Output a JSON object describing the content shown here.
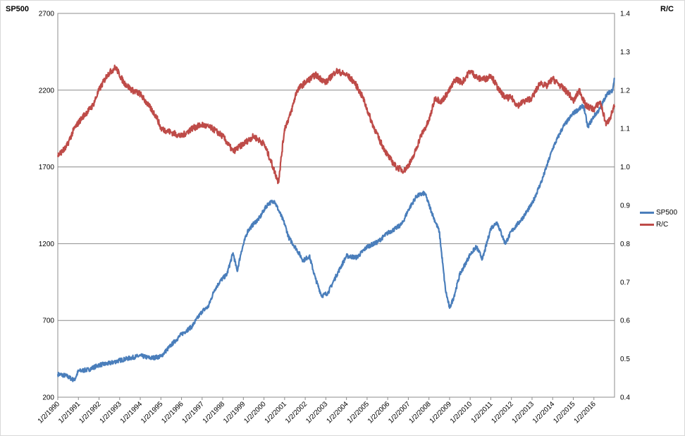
{
  "chart_data": {
    "type": "line",
    "left_axis": {
      "label": "SP500",
      "ylim": [
        200,
        2700
      ],
      "ticks": [
        200,
        700,
        1200,
        1700,
        2200,
        2700
      ]
    },
    "right_axis": {
      "label": "R/C",
      "ylim": [
        0.4,
        1.4
      ],
      "ticks": [
        "0.4",
        "0.5",
        "0.6",
        "0.7",
        "0.8",
        "0.9",
        "1.0",
        "1.1",
        "1.2",
        "1.3",
        "1.4"
      ]
    },
    "x_labels": [
      "1/2/1990",
      "1/2/1991",
      "1/2/1992",
      "1/2/1993",
      "1/2/1994",
      "1/2/1995",
      "1/2/1996",
      "1/2/1997",
      "1/2/1998",
      "1/2/1999",
      "1/2/2000",
      "1/2/2001",
      "1/2/2002",
      "1/2/2003",
      "1/2/2004",
      "1/2/2005",
      "1/2/2006",
      "1/2/2007",
      "1/2/2008",
      "1/2/2009",
      "1/2/2010",
      "1/2/2011",
      "1/2/2012",
      "1/2/2013",
      "1/2/2014",
      "1/2/2015",
      "1/2/2016"
    ],
    "xlim": [
      1990.0,
      2017.0
    ],
    "grid": "horizontal",
    "legend_position": "right",
    "series": [
      {
        "name": "SP500",
        "axis": "left",
        "color": "#4a7ebb",
        "x": [
          1990.0,
          1990.4,
          1990.8,
          1991.0,
          1991.5,
          1992.0,
          1992.5,
          1993.0,
          1993.5,
          1994.0,
          1994.5,
          1995.0,
          1995.5,
          1996.0,
          1996.5,
          1997.0,
          1997.3,
          1997.6,
          1997.9,
          1998.2,
          1998.5,
          1998.7,
          1998.9,
          1999.2,
          1999.5,
          1999.8,
          2000.0,
          2000.2,
          2000.5,
          2000.7,
          2001.0,
          2001.2,
          2001.6,
          2001.9,
          2002.2,
          2002.5,
          2002.8,
          2003.1,
          2003.5,
          2004.0,
          2004.5,
          2005.0,
          2005.5,
          2006.0,
          2006.4,
          2006.7,
          2007.0,
          2007.4,
          2007.8,
          2008.2,
          2008.5,
          2008.8,
          2009.0,
          2009.2,
          2009.5,
          2010.0,
          2010.3,
          2010.6,
          2011.0,
          2011.3,
          2011.7,
          2012.0,
          2012.5,
          2013.0,
          2013.5,
          2014.0,
          2014.5,
          2015.0,
          2015.5,
          2015.7,
          2016.0,
          2016.3,
          2016.6,
          2016.9,
          2017.0
        ],
        "values": [
          350,
          340,
          310,
          370,
          380,
          410,
          420,
          440,
          455,
          470,
          455,
          465,
          540,
          610,
          660,
          760,
          790,
          900,
          960,
          1000,
          1140,
          1020,
          1150,
          1280,
          1330,
          1370,
          1420,
          1460,
          1480,
          1420,
          1330,
          1240,
          1160,
          1090,
          1120,
          970,
          860,
          880,
          990,
          1120,
          1110,
          1180,
          1210,
          1270,
          1300,
          1330,
          1420,
          1510,
          1530,
          1380,
          1280,
          900,
          780,
          850,
          1000,
          1130,
          1180,
          1100,
          1300,
          1340,
          1200,
          1280,
          1360,
          1460,
          1620,
          1820,
          1960,
          2050,
          2100,
          1960,
          2030,
          2080,
          2170,
          2200,
          2280
        ]
      },
      {
        "name": "R/C",
        "axis": "right",
        "color": "#be4b48",
        "x": [
          1990.0,
          1990.4,
          1990.8,
          1991.2,
          1991.7,
          1992.0,
          1992.4,
          1992.8,
          1993.2,
          1993.6,
          1994.0,
          1994.4,
          1994.8,
          1995.0,
          1995.5,
          1996.0,
          1996.5,
          1997.0,
          1997.5,
          1998.0,
          1998.5,
          1999.0,
          1999.5,
          2000.0,
          2000.3,
          2000.7,
          2001.0,
          2001.3,
          2001.6,
          2002.0,
          2002.5,
          2003.0,
          2003.5,
          2004.0,
          2004.4,
          2004.8,
          2005.2,
          2005.6,
          2006.0,
          2006.4,
          2006.8,
          2007.2,
          2007.6,
          2008.0,
          2008.3,
          2008.6,
          2009.0,
          2009.3,
          2009.6,
          2010.0,
          2010.4,
          2010.8,
          2011.0,
          2011.4,
          2011.7,
          2012.0,
          2012.3,
          2012.6,
          2013.0,
          2013.4,
          2013.7,
          2014.0,
          2014.4,
          2014.8,
          2015.0,
          2015.3,
          2015.6,
          2016.0,
          2016.3,
          2016.6,
          2016.8,
          2017.0
        ],
        "values": [
          1.03,
          1.05,
          1.1,
          1.13,
          1.16,
          1.2,
          1.24,
          1.26,
          1.22,
          1.2,
          1.19,
          1.16,
          1.13,
          1.1,
          1.09,
          1.08,
          1.1,
          1.11,
          1.1,
          1.08,
          1.04,
          1.06,
          1.08,
          1.06,
          1.02,
          0.96,
          1.1,
          1.14,
          1.2,
          1.22,
          1.24,
          1.22,
          1.25,
          1.24,
          1.22,
          1.18,
          1.12,
          1.07,
          1.03,
          1.0,
          0.99,
          1.02,
          1.08,
          1.12,
          1.18,
          1.17,
          1.2,
          1.23,
          1.22,
          1.25,
          1.23,
          1.23,
          1.24,
          1.2,
          1.18,
          1.18,
          1.16,
          1.17,
          1.18,
          1.22,
          1.21,
          1.23,
          1.21,
          1.19,
          1.17,
          1.2,
          1.16,
          1.15,
          1.17,
          1.11,
          1.13,
          1.16
        ]
      }
    ]
  }
}
